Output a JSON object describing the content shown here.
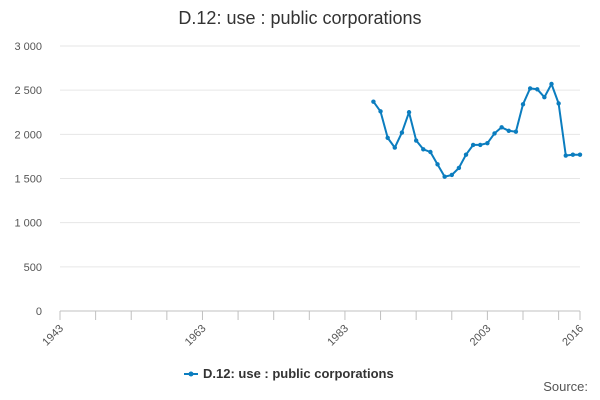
{
  "title": "D.12: use : public corporations",
  "source_label": "Source:",
  "colors": {
    "series": "#0b7dbf",
    "grid": "#e6e6e6",
    "text": "#333333"
  },
  "chart_data": {
    "type": "line",
    "title": "D.12: use : public corporations",
    "xlabel": "",
    "ylabel": "",
    "xlim": [
      1943,
      2016
    ],
    "ylim": [
      0,
      3000
    ],
    "x_ticks": [
      1943,
      1963,
      1983,
      2003,
      2016
    ],
    "x_minor_ticks": [
      1948,
      1953,
      1958,
      1968,
      1973,
      1978,
      1988,
      1993,
      1998,
      2008,
      2013
    ],
    "y_ticks": [
      0,
      500,
      1000,
      1500,
      2000,
      2500,
      3000
    ],
    "y_tick_labels": [
      "0",
      "500",
      "1 000",
      "1 500",
      "2 000",
      "2 500",
      "3 000"
    ],
    "grid": "horizontal",
    "legend_position": "bottom-center",
    "series": [
      {
        "name": "D.12: use : public corporations",
        "color": "#0b7dbf",
        "x": [
          1987,
          1988,
          1989,
          1990,
          1991,
          1992,
          1993,
          1994,
          1995,
          1996,
          1997,
          1998,
          1999,
          2000,
          2001,
          2002,
          2003,
          2004,
          2005,
          2006,
          2007,
          2008,
          2009,
          2010,
          2011,
          2012,
          2013,
          2014,
          2015,
          2016
        ],
        "y": [
          2370,
          2260,
          1960,
          1850,
          2020,
          2250,
          1930,
          1830,
          1800,
          1660,
          1520,
          1540,
          1620,
          1770,
          1880,
          1880,
          1900,
          2010,
          2080,
          2040,
          2030,
          2340,
          2520,
          2510,
          2420,
          2570,
          2350,
          1760,
          1770,
          1770
        ]
      }
    ]
  }
}
